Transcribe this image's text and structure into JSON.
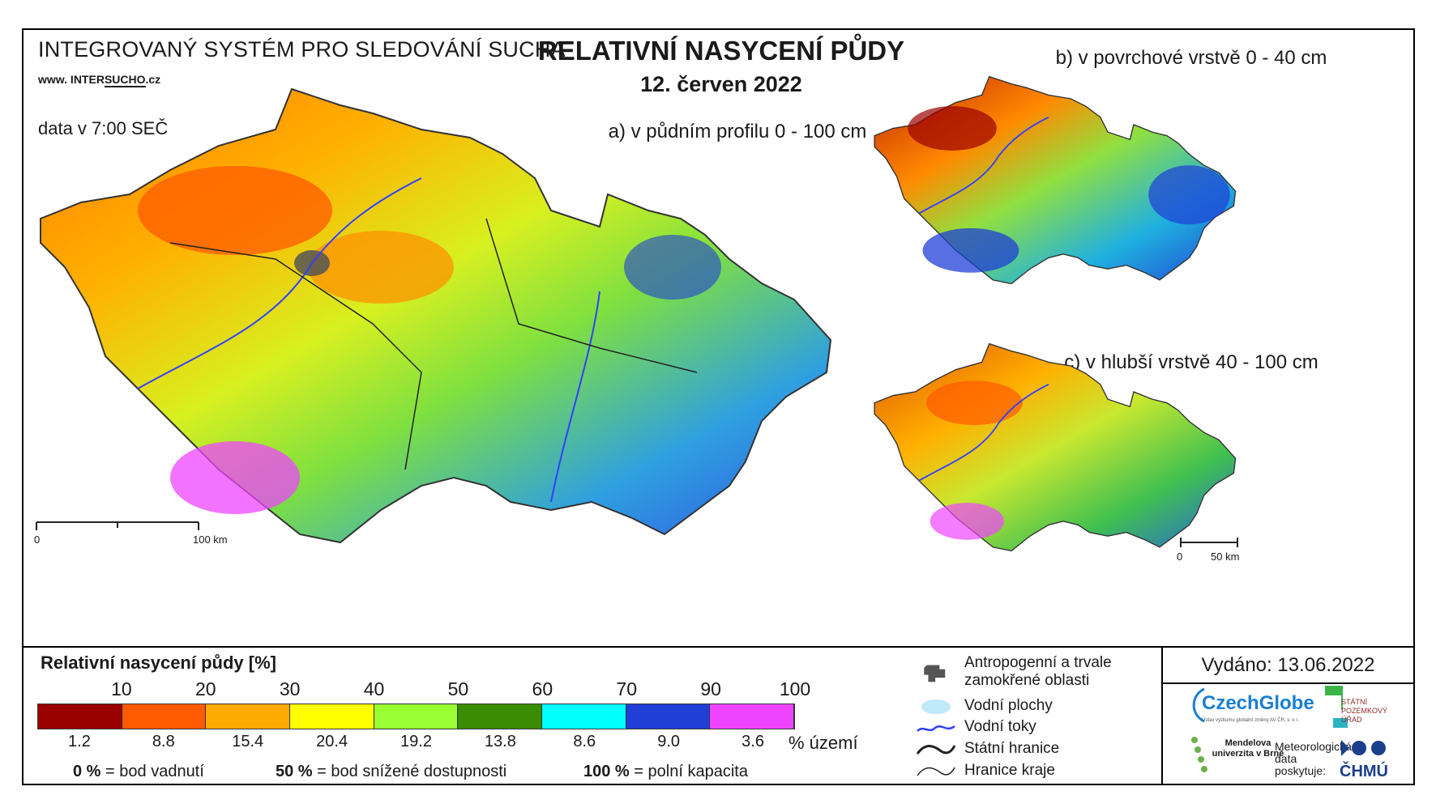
{
  "header": {
    "system_title": "INTEGROVANÝ SYSTÉM PRO SLEDOVÁNÍ SUCHA",
    "website_prefix": "www. INTER",
    "website_mid": "SUCHO",
    "website_suffix": ".cz",
    "data_time": "data v 7:00 SEČ",
    "title": "RELATIVNÍ NASYCENÍ PŮDY",
    "date": "12. červen 2022"
  },
  "maps": {
    "main_label": "a) v půdním profilu 0 - 100 cm",
    "surface_label": "b) v povrchové vrstvě 0 - 40 cm",
    "deep_label": "c) v hlubší vrstvě 40 - 100 cm",
    "main_scale": {
      "start": "0",
      "end": "100 km"
    },
    "small_scale": {
      "start": "0",
      "end": "50 km"
    }
  },
  "legend": {
    "title": "Relativní nasycení půdy [%]",
    "thresholds": [
      "10",
      "20",
      "30",
      "40",
      "50",
      "60",
      "70",
      "90",
      "100"
    ],
    "classes": [
      {
        "color": "#9b0000",
        "share": "1.2"
      },
      {
        "color": "#ff5a00",
        "share": "8.8"
      },
      {
        "color": "#ffaa00",
        "share": "15.4"
      },
      {
        "color": "#ffff00",
        "share": "20.4"
      },
      {
        "color": "#99ff33",
        "share": "19.2"
      },
      {
        "color": "#3a8c00",
        "share": "13.8"
      },
      {
        "color": "#00ffff",
        "share": "8.6"
      },
      {
        "color": "#1f3fd6",
        "share": "9.0"
      },
      {
        "color": "#ee44ff",
        "share": "3.6"
      }
    ],
    "share_unit": "% území",
    "definitions": [
      {
        "value": "0 %",
        "text": "= bod vadnutí"
      },
      {
        "value": "50 %",
        "text": "= bod snížené dostupnosti"
      },
      {
        "value": "100 %",
        "text": "= polní kapacita"
      }
    ]
  },
  "symbols": {
    "urban": "Antropogenní a trvale zamokřené oblasti",
    "water_bodies": "Vodní plochy",
    "rivers": "Vodní toky",
    "state_border": "Státní hranice",
    "region_border": "Hranice kraje"
  },
  "footer": {
    "issued": "Vydáno: 13.06.2022",
    "czechglobe": "CzechGlobe",
    "czechglobe_sub": "Ústav výzkumu globální změny AV ČR, v. v. i.",
    "spu": "STÁTNÍ POZEMKOVÝ ÚŘAD",
    "mendel": "Mendelova univerzita v Brně",
    "meteo": "Meteorologická data poskytuje:",
    "chmu": "ČHMÚ"
  }
}
